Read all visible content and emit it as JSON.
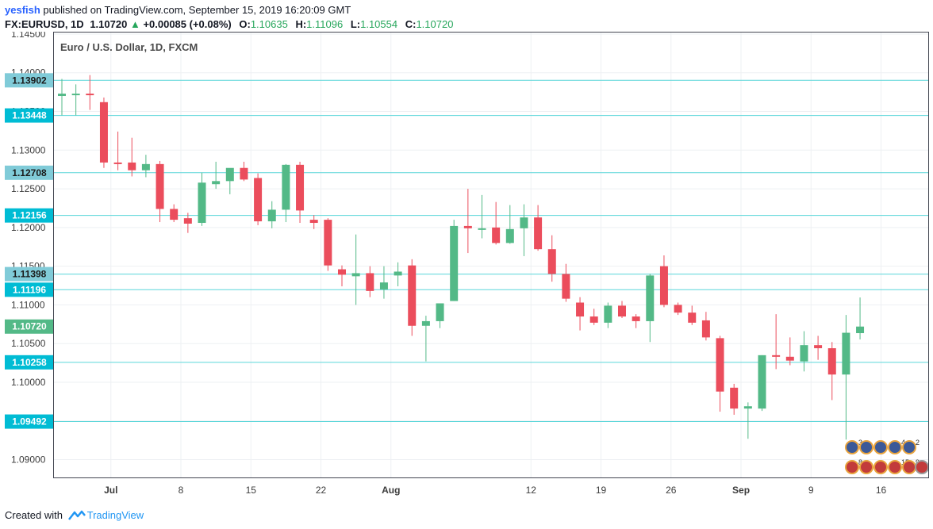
{
  "header": {
    "author": "yesfish",
    "published": " published on TradingView.com, September 15, 2019 16:20:09 GMT",
    "symbol": "FX:EURUSD, 1D",
    "last": "1.10720",
    "change": "+0.00085 (+0.08%)",
    "o_label": "O:",
    "o_value": "1.10635",
    "h_label": "H:",
    "h_value": "1.11096",
    "l_label": "L:",
    "l_value": "1.10554",
    "c_label": "C:",
    "c_value": "1.10720"
  },
  "footer": {
    "created_with": "Created with",
    "brand": "TradingView"
  },
  "colors": {
    "up": "#53b987",
    "down": "#eb4d5c",
    "hline": "#5ad6d9",
    "label_dark": "#00bcd4",
    "label_light": "#80cbd8",
    "price_label": "#53b987"
  },
  "chart_data": {
    "type": "candlestick",
    "title": "Euro / U.S. Dollar, 1D, FXCM",
    "ylim": [
      1.0877,
      1.1452
    ],
    "y_ticks": [
      "1.09000",
      "1.09500",
      "1.10000",
      "1.10500",
      "1.11000",
      "1.11500",
      "1.12000",
      "1.12500",
      "1.13000",
      "1.13500",
      "1.14000",
      "1.14500"
    ],
    "x_ticks": [
      {
        "label": "Jul",
        "bar": 3.5,
        "bold": true
      },
      {
        "label": "8",
        "bar": 8.5,
        "bold": false
      },
      {
        "label": "15",
        "bar": 13.5,
        "bold": false
      },
      {
        "label": "22",
        "bar": 18.5,
        "bold": false
      },
      {
        "label": "Aug",
        "bar": 23.5,
        "bold": true
      },
      {
        "label": "12",
        "bar": 33.5,
        "bold": false
      },
      {
        "label": "19",
        "bar": 38.5,
        "bold": false
      },
      {
        "label": "26",
        "bar": 43.5,
        "bold": false
      },
      {
        "label": "Sep",
        "bar": 48.5,
        "bold": true
      },
      {
        "label": "9",
        "bar": 53.5,
        "bold": false
      },
      {
        "label": "16",
        "bar": 58.5,
        "bold": false
      }
    ],
    "horizontal_levels": [
      {
        "value": "1.13902",
        "style": "light"
      },
      {
        "value": "1.13448",
        "style": "dark"
      },
      {
        "value": "1.12708",
        "style": "light"
      },
      {
        "value": "1.12156",
        "style": "dark"
      },
      {
        "value": "1.11398",
        "style": "light"
      },
      {
        "value": "1.11196",
        "style": "dark"
      },
      {
        "value": "1.10258",
        "style": "dark"
      },
      {
        "value": "1.09492",
        "style": "dark"
      }
    ],
    "current_price": "1.10720",
    "candles": [
      {
        "o": 1.137,
        "h": 1.1392,
        "l": 1.1345,
        "c": 1.1373
      },
      {
        "o": 1.1373,
        "h": 1.1385,
        "l": 1.1345,
        "c": 1.1373
      },
      {
        "o": 1.1373,
        "h": 1.1397,
        "l": 1.1352,
        "c": 1.1371
      },
      {
        "o": 1.1362,
        "h": 1.1368,
        "l": 1.1277,
        "c": 1.1284
      },
      {
        "o": 1.1284,
        "h": 1.1324,
        "l": 1.1274,
        "c": 1.1283
      },
      {
        "o": 1.1284,
        "h": 1.1316,
        "l": 1.1266,
        "c": 1.1274
      },
      {
        "o": 1.1274,
        "h": 1.1294,
        "l": 1.1265,
        "c": 1.1282
      },
      {
        "o": 1.1282,
        "h": 1.1286,
        "l": 1.1207,
        "c": 1.1224
      },
      {
        "o": 1.1224,
        "h": 1.123,
        "l": 1.1207,
        "c": 1.121
      },
      {
        "o": 1.1212,
        "h": 1.1219,
        "l": 1.1193,
        "c": 1.1205
      },
      {
        "o": 1.1206,
        "h": 1.1271,
        "l": 1.1202,
        "c": 1.1258
      },
      {
        "o": 1.1256,
        "h": 1.1285,
        "l": 1.125,
        "c": 1.126
      },
      {
        "o": 1.126,
        "h": 1.1275,
        "l": 1.1243,
        "c": 1.1277
      },
      {
        "o": 1.1277,
        "h": 1.1285,
        "l": 1.126,
        "c": 1.1262
      },
      {
        "o": 1.1264,
        "h": 1.127,
        "l": 1.1203,
        "c": 1.1208
      },
      {
        "o": 1.1208,
        "h": 1.1234,
        "l": 1.1199,
        "c": 1.1223
      },
      {
        "o": 1.1223,
        "h": 1.1282,
        "l": 1.1207,
        "c": 1.1281
      },
      {
        "o": 1.1281,
        "h": 1.1285,
        "l": 1.1206,
        "c": 1.1222
      },
      {
        "o": 1.121,
        "h": 1.1216,
        "l": 1.1198,
        "c": 1.1206
      },
      {
        "o": 1.121,
        "h": 1.1212,
        "l": 1.1144,
        "c": 1.1151
      },
      {
        "o": 1.1146,
        "h": 1.1151,
        "l": 1.1124,
        "c": 1.1139
      },
      {
        "o": 1.1137,
        "h": 1.1191,
        "l": 1.11,
        "c": 1.1141
      },
      {
        "o": 1.1141,
        "h": 1.115,
        "l": 1.111,
        "c": 1.1118
      },
      {
        "o": 1.112,
        "h": 1.115,
        "l": 1.1108,
        "c": 1.1129
      },
      {
        "o": 1.1138,
        "h": 1.1155,
        "l": 1.1124,
        "c": 1.1143
      },
      {
        "o": 1.1151,
        "h": 1.1159,
        "l": 1.106,
        "c": 1.1073
      },
      {
        "o": 1.1073,
        "h": 1.1086,
        "l": 1.1027,
        "c": 1.1079
      },
      {
        "o": 1.1079,
        "h": 1.1101,
        "l": 1.107,
        "c": 1.1102
      },
      {
        "o": 1.1105,
        "h": 1.121,
        "l": 1.1105,
        "c": 1.1202
      },
      {
        "o": 1.1202,
        "h": 1.125,
        "l": 1.1167,
        "c": 1.1199
      },
      {
        "o": 1.1198,
        "h": 1.1242,
        "l": 1.1186,
        "c": 1.1199
      },
      {
        "o": 1.12,
        "h": 1.1233,
        "l": 1.1178,
        "c": 1.118
      },
      {
        "o": 1.118,
        "h": 1.1229,
        "l": 1.1179,
        "c": 1.1198
      },
      {
        "o": 1.1199,
        "h": 1.123,
        "l": 1.1163,
        "c": 1.1213
      },
      {
        "o": 1.1213,
        "h": 1.1229,
        "l": 1.117,
        "c": 1.1172
      },
      {
        "o": 1.1172,
        "h": 1.119,
        "l": 1.113,
        "c": 1.114
      },
      {
        "o": 1.114,
        "h": 1.1153,
        "l": 1.1104,
        "c": 1.1108
      },
      {
        "o": 1.1103,
        "h": 1.111,
        "l": 1.1067,
        "c": 1.1085
      },
      {
        "o": 1.1085,
        "h": 1.1095,
        "l": 1.1074,
        "c": 1.1077
      },
      {
        "o": 1.1077,
        "h": 1.1103,
        "l": 1.107,
        "c": 1.1099
      },
      {
        "o": 1.1099,
        "h": 1.1105,
        "l": 1.1083,
        "c": 1.1085
      },
      {
        "o": 1.1085,
        "h": 1.1088,
        "l": 1.107,
        "c": 1.1079
      },
      {
        "o": 1.1079,
        "h": 1.114,
        "l": 1.1052,
        "c": 1.1138
      },
      {
        "o": 1.115,
        "h": 1.1164,
        "l": 1.1097,
        "c": 1.11
      },
      {
        "o": 1.11,
        "h": 1.1103,
        "l": 1.1087,
        "c": 1.109
      },
      {
        "o": 1.109,
        "h": 1.1099,
        "l": 1.1074,
        "c": 1.1077
      },
      {
        "o": 1.108,
        "h": 1.1091,
        "l": 1.1054,
        "c": 1.1058
      },
      {
        "o": 1.1057,
        "h": 1.106,
        "l": 1.0962,
        "c": 1.0988
      },
      {
        "o": 1.0993,
        "h": 1.0998,
        "l": 1.0958,
        "c": 1.0966
      },
      {
        "o": 1.0966,
        "h": 1.0974,
        "l": 1.0927,
        "c": 1.0969
      },
      {
        "o": 1.0966,
        "h": 1.1035,
        "l": 1.0963,
        "c": 1.1035
      },
      {
        "o": 1.1035,
        "h": 1.1088,
        "l": 1.1017,
        "c": 1.1033
      },
      {
        "o": 1.1033,
        "h": 1.1058,
        "l": 1.1022,
        "c": 1.1028
      },
      {
        "o": 1.1027,
        "h": 1.1066,
        "l": 1.1014,
        "c": 1.1048
      },
      {
        "o": 1.1048,
        "h": 1.106,
        "l": 1.1029,
        "c": 1.1044
      },
      {
        "o": 1.1044,
        "h": 1.1052,
        "l": 1.0977,
        "c": 1.101
      },
      {
        "o": 1.101,
        "h": 1.1087,
        "l": 1.0926,
        "c": 1.1064
      },
      {
        "o": 1.10635,
        "h": 1.11096,
        "l": 1.10554,
        "c": 1.1072
      }
    ]
  }
}
